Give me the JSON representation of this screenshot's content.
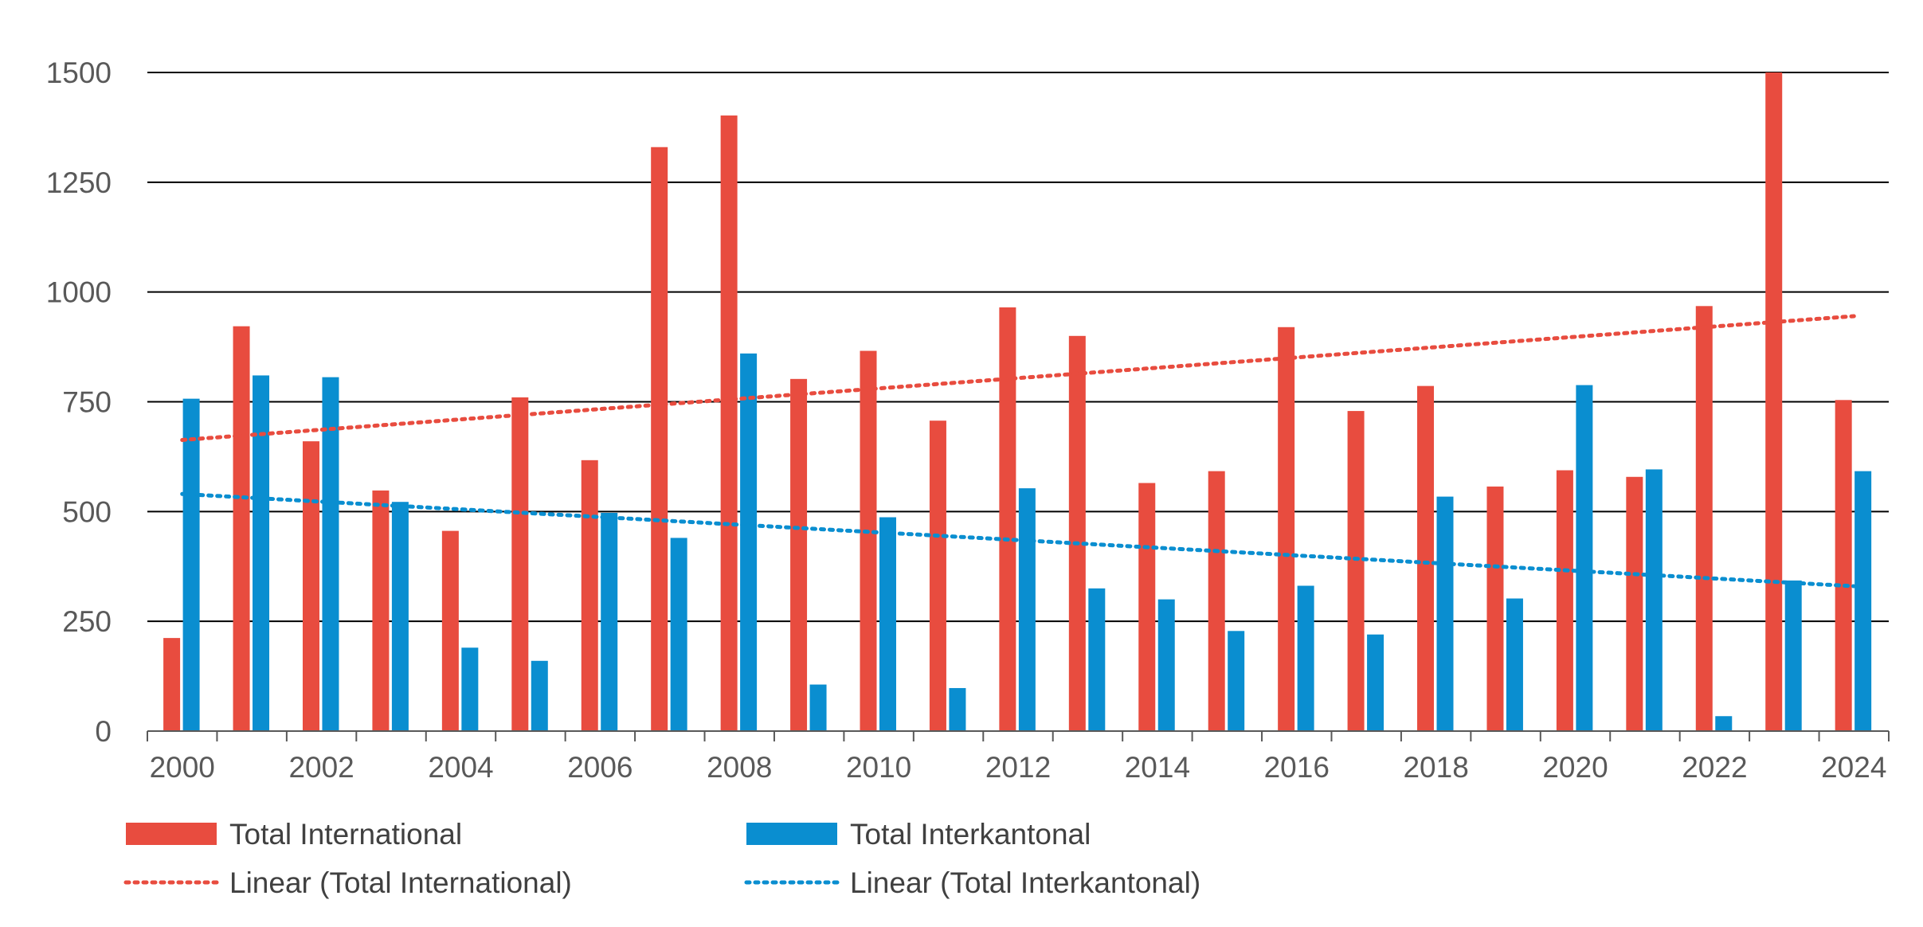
{
  "chart_data": {
    "type": "bar",
    "title": "",
    "xlabel": "",
    "ylabel": "",
    "ylim": [
      0,
      1500
    ],
    "yticks": [
      0,
      250,
      500,
      750,
      1000,
      1250,
      1500
    ],
    "grid": true,
    "legend_position": "bottom",
    "categories": [
      "2000",
      "2001",
      "2002",
      "2003",
      "2004",
      "2005",
      "2006",
      "2007",
      "2008",
      "2009",
      "2010",
      "2011",
      "2012",
      "2013",
      "2014",
      "2015",
      "2016",
      "2017",
      "2018",
      "2019",
      "2020",
      "2021",
      "2022",
      "2023",
      "2024"
    ],
    "xtick_labels": [
      "2000",
      "2002",
      "2004",
      "2006",
      "2008",
      "2010",
      "2012",
      "2014",
      "2016",
      "2018",
      "2020",
      "2022",
      "2024"
    ],
    "series": [
      {
        "name": "Total International",
        "color": "#E84C3F",
        "values": [
          212,
          922,
          660,
          548,
          456,
          760,
          617,
          1330,
          1402,
          802,
          866,
          707,
          965,
          900,
          565,
          592,
          920,
          729,
          786,
          557,
          594,
          579,
          968,
          1500,
          754
        ]
      },
      {
        "name": "Total Interkantonal",
        "color": "#0A8ED0",
        "values": [
          757,
          810,
          806,
          522,
          190,
          160,
          497,
          440,
          860,
          106,
          487,
          98,
          553,
          325,
          300,
          228,
          331,
          220,
          534,
          302,
          788,
          596,
          34,
          343,
          592
        ]
      }
    ],
    "trendlines": [
      {
        "name": "Linear (Total International)",
        "color": "#E84C3F",
        "start": 663,
        "end": 945
      },
      {
        "name": "Linear (Total Interkantonal)",
        "color": "#0A8ED0",
        "start": 540,
        "end": 330
      }
    ]
  }
}
